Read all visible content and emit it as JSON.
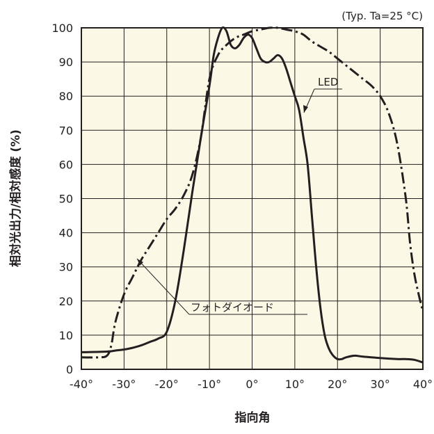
{
  "chart_data": {
    "type": "line",
    "title": "",
    "note": "(Typ. Ta=25 °C)",
    "xlabel": "指向角",
    "ylabel": "相対光出力/相対感度 (%)",
    "xlim": [
      -40,
      40
    ],
    "ylim": [
      0,
      100
    ],
    "xticks": [
      -40,
      -30,
      -20,
      -10,
      0,
      10,
      20,
      30,
      40
    ],
    "xtick_labels": [
      "-40°",
      "-30°",
      "-20°",
      "-10°",
      "0°",
      "10°",
      "20°",
      "30°",
      "40°"
    ],
    "yticks": [
      0,
      10,
      20,
      30,
      40,
      50,
      60,
      70,
      80,
      90,
      100
    ],
    "ytick_labels": [
      "0",
      "10",
      "20",
      "30",
      "40",
      "50",
      "60",
      "70",
      "80",
      "90",
      "100"
    ],
    "grid": true,
    "colors": {
      "line": "#231f20",
      "grid": "#231f20",
      "plot_bg": "#fbf8e6"
    },
    "series": [
      {
        "name": "LED",
        "style": "dash-dot",
        "x": [
          -40,
          -36,
          -34,
          -33,
          -32,
          -30,
          -28,
          -26,
          -24,
          -22,
          -20,
          -18,
          -16,
          -14,
          -12,
          -10,
          -8,
          -6,
          -4,
          -2,
          0,
          2,
          4,
          6,
          8,
          10,
          12,
          14,
          16,
          18,
          20,
          22,
          24,
          26,
          28,
          30,
          32,
          34,
          36,
          37,
          38,
          39,
          40
        ],
        "y": [
          3.5,
          3.5,
          4,
          7,
          14,
          22,
          27,
          32,
          36,
          40,
          44,
          47,
          51,
          57,
          68,
          85,
          92,
          95,
          97,
          98,
          99,
          99.5,
          100,
          100,
          99.5,
          99,
          98,
          96,
          94.5,
          93,
          91,
          89,
          87,
          85,
          83,
          80,
          75,
          66,
          50,
          37,
          28,
          22,
          17
        ]
      },
      {
        "name": "フォトダイオード",
        "style": "solid",
        "x": [
          -40,
          -34,
          -32,
          -30,
          -28,
          -26,
          -24,
          -22,
          -20,
          -18,
          -16,
          -14,
          -12,
          -10,
          -9,
          -8,
          -7,
          -6,
          -5,
          -4,
          -3,
          -2,
          -1,
          0,
          1,
          2,
          3,
          4,
          5,
          6,
          7,
          8,
          9,
          10,
          11,
          12,
          13,
          14,
          15,
          16,
          17,
          18,
          19,
          20,
          21,
          22,
          24,
          26,
          30,
          34,
          36,
          38,
          40
        ],
        "y": [
          5,
          5.2,
          5.5,
          5.8,
          6.3,
          7,
          8,
          9,
          11,
          20,
          35,
          52,
          68,
          83,
          92,
          97,
          100,
          99,
          95,
          94,
          95,
          97,
          98,
          97,
          94,
          91,
          90,
          90,
          91,
          92,
          91,
          88,
          84,
          80,
          76,
          68,
          60,
          45,
          30,
          18,
          10,
          6,
          4,
          3,
          3,
          3.5,
          4,
          3.7,
          3.3,
          3,
          3,
          2.8,
          2
        ]
      }
    ],
    "annotations": [
      {
        "text": "LED",
        "points_to": [
          13,
          75
        ]
      },
      {
        "text": "フォトダイオード",
        "points_to": [
          -27,
          34
        ]
      }
    ]
  }
}
